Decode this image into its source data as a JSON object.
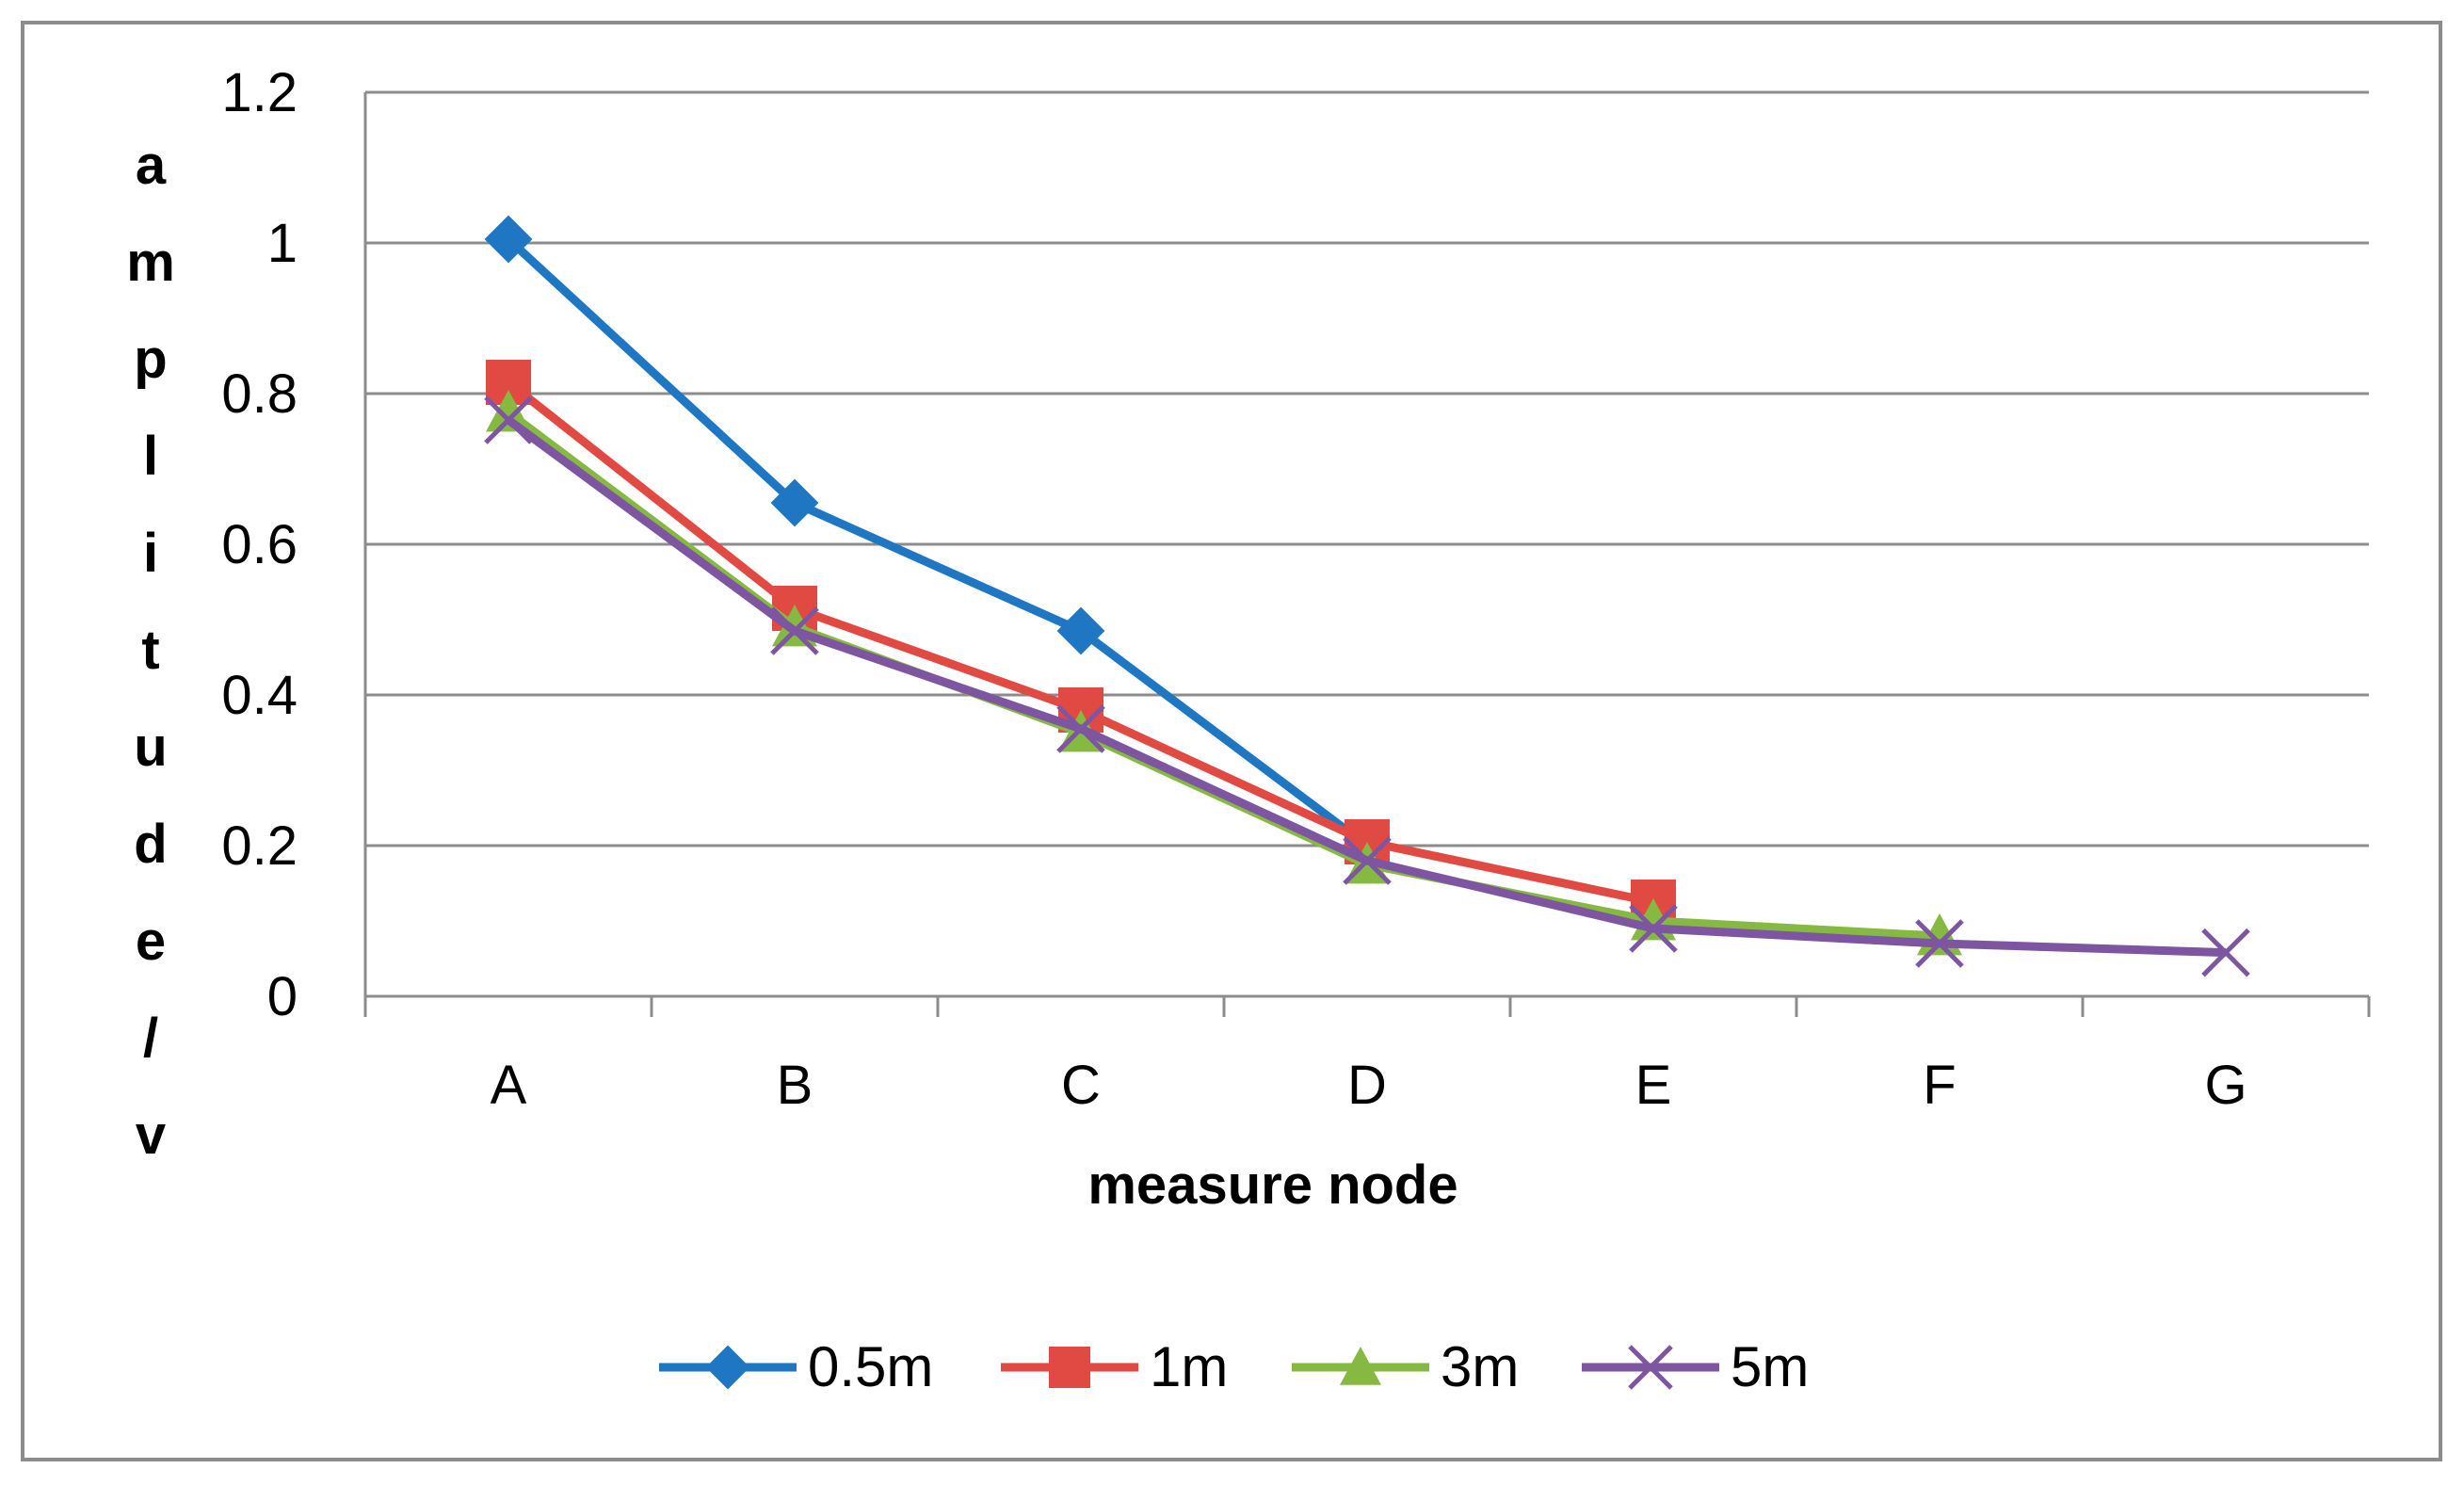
{
  "chart_data": {
    "type": "line",
    "title": "",
    "xlabel": "measure node",
    "ylabel": "amplitude/v",
    "categories": [
      "A",
      "B",
      "C",
      "D",
      "E",
      "F",
      "G"
    ],
    "ylim": [
      0,
      1.2
    ],
    "yticks": [
      0,
      0.2,
      0.4,
      0.6,
      0.8,
      1,
      1.2
    ],
    "grid": true,
    "legend_position": "bottom",
    "series": [
      {
        "name": "0.5m",
        "color": "#1f77c4",
        "marker": "diamond",
        "values": [
          1.005,
          0.655,
          0.485,
          0.2,
          null,
          null,
          null
        ]
      },
      {
        "name": "1m",
        "color": "#e04a43",
        "marker": "square",
        "values": [
          0.815,
          0.515,
          0.38,
          0.205,
          0.125,
          null,
          null
        ]
      },
      {
        "name": "3m",
        "color": "#86b942",
        "marker": "triangle",
        "values": [
          0.775,
          0.49,
          0.35,
          0.175,
          0.1,
          0.08,
          null
        ]
      },
      {
        "name": "5m",
        "color": "#7d55a0",
        "marker": "x",
        "values": [
          0.765,
          0.485,
          0.355,
          0.18,
          0.09,
          0.07,
          0.058
        ]
      }
    ]
  }
}
